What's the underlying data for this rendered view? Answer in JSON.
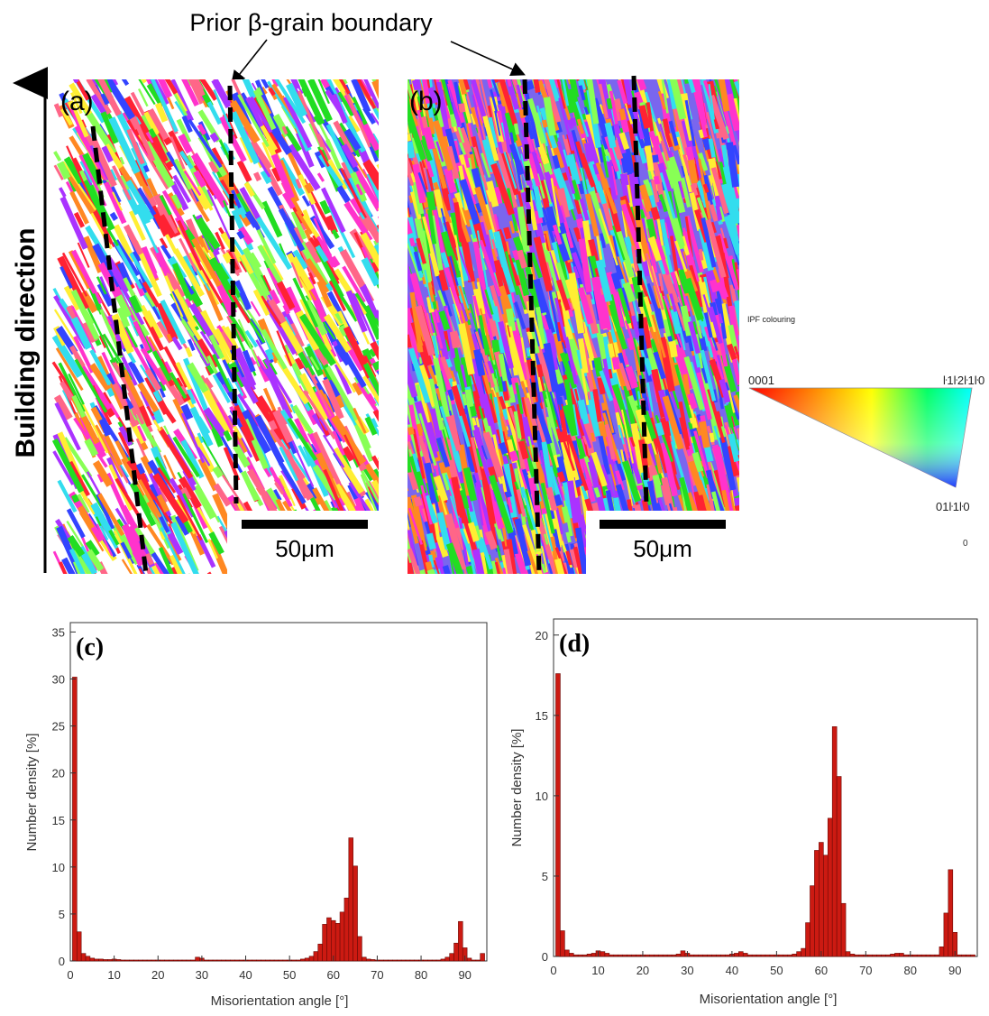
{
  "annotation": {
    "text": "Prior β-grain boundary"
  },
  "building_direction": {
    "text": "Building direction"
  },
  "maps": [
    {
      "label": "(a)",
      "scale_bar": "50μm"
    },
    {
      "label": "(b)",
      "scale_bar": "50μm"
    }
  ],
  "ipf_key": {
    "title": "IPF colouring",
    "corner_0001": "0001",
    "corner_1210": "ŀ1ŀ2ŀ1ŀ0",
    "corner_0110": "01ŀ1ŀ0",
    "stray": "0"
  },
  "colors": {
    "bar_fill": "#cc1a12",
    "bar_stroke": "#6a0a06",
    "boundary": "#000000",
    "map_palette": [
      "#ff2233",
      "#22dd22",
      "#ff33cc",
      "#3344ff",
      "#ffee33",
      "#33ddee",
      "#ff8822",
      "#aa33ff",
      "#88ff55",
      "#ff6688"
    ]
  },
  "chart_data": [
    {
      "panel": "(c)",
      "type": "bar",
      "xlabel": "Misorientation angle [°]",
      "ylabel": "Number density [%]",
      "xlim": [
        0,
        95
      ],
      "ylim": [
        0,
        36
      ],
      "xticks": [
        "0",
        "10",
        "20",
        "30",
        "40",
        "50",
        "60",
        "70",
        "80",
        "90"
      ],
      "yticks": [
        "0",
        "5",
        "10",
        "15",
        "20",
        "25",
        "30",
        "35"
      ],
      "bin_width": 1,
      "x": [
        1,
        2,
        3,
        4,
        5,
        6,
        7,
        8,
        9,
        10,
        11,
        12,
        13,
        14,
        15,
        16,
        17,
        18,
        19,
        20,
        21,
        22,
        23,
        24,
        25,
        26,
        27,
        28,
        29,
        30,
        31,
        32,
        33,
        34,
        35,
        36,
        37,
        38,
        39,
        40,
        41,
        42,
        43,
        44,
        45,
        46,
        47,
        48,
        49,
        50,
        51,
        52,
        53,
        54,
        55,
        56,
        57,
        58,
        59,
        60,
        61,
        62,
        63,
        64,
        65,
        66,
        67,
        68,
        69,
        70,
        71,
        72,
        73,
        74,
        75,
        76,
        77,
        78,
        79,
        80,
        81,
        82,
        83,
        84,
        85,
        86,
        87,
        88,
        89,
        90,
        91,
        92,
        93,
        94
      ],
      "values": [
        30.2,
        3.1,
        0.8,
        0.5,
        0.3,
        0.2,
        0.2,
        0.15,
        0.15,
        0.2,
        0.15,
        0.1,
        0.1,
        0.1,
        0.1,
        0.1,
        0.1,
        0.1,
        0.1,
        0.1,
        0.1,
        0.1,
        0.1,
        0.1,
        0.1,
        0.1,
        0.1,
        0.1,
        0.4,
        0.3,
        0.1,
        0.1,
        0.1,
        0.1,
        0.1,
        0.1,
        0.1,
        0.1,
        0.1,
        0.1,
        0.1,
        0.1,
        0.1,
        0.1,
        0.1,
        0.1,
        0.1,
        0.1,
        0.1,
        0.1,
        0.1,
        0.1,
        0.2,
        0.3,
        0.5,
        1.0,
        1.8,
        3.9,
        4.6,
        4.3,
        4.0,
        5.2,
        6.7,
        13.1,
        10.1,
        2.6,
        0.4,
        0.2,
        0.15,
        0.1,
        0.1,
        0.1,
        0.1,
        0.1,
        0.1,
        0.1,
        0.1,
        0.1,
        0.1,
        0.1,
        0.1,
        0.1,
        0.1,
        0.1,
        0.2,
        0.4,
        0.8,
        1.9,
        4.2,
        1.4,
        0.3,
        0.1,
        0.1,
        0.8
      ]
    },
    {
      "panel": "(d)",
      "type": "bar",
      "xlabel": "Misorientation angle [°]",
      "ylabel": "Number density [%]",
      "xlim": [
        0,
        95
      ],
      "ylim": [
        0,
        21
      ],
      "xticks": [
        "0",
        "10",
        "20",
        "30",
        "40",
        "50",
        "60",
        "70",
        "80",
        "90"
      ],
      "yticks": [
        "0",
        "5",
        "10",
        "15",
        "20"
      ],
      "bin_width": 1,
      "x": [
        1,
        2,
        3,
        4,
        5,
        6,
        7,
        8,
        9,
        10,
        11,
        12,
        13,
        14,
        15,
        16,
        17,
        18,
        19,
        20,
        21,
        22,
        23,
        24,
        25,
        26,
        27,
        28,
        29,
        30,
        31,
        32,
        33,
        34,
        35,
        36,
        37,
        38,
        39,
        40,
        41,
        42,
        43,
        44,
        45,
        46,
        47,
        48,
        49,
        50,
        51,
        52,
        53,
        54,
        55,
        56,
        57,
        58,
        59,
        60,
        61,
        62,
        63,
        64,
        65,
        66,
        67,
        68,
        69,
        70,
        71,
        72,
        73,
        74,
        75,
        76,
        77,
        78,
        79,
        80,
        81,
        82,
        83,
        84,
        85,
        86,
        87,
        88,
        89,
        90,
        91,
        92,
        93,
        94
      ],
      "values": [
        17.6,
        1.6,
        0.4,
        0.2,
        0.1,
        0.1,
        0.1,
        0.15,
        0.2,
        0.35,
        0.3,
        0.2,
        0.1,
        0.1,
        0.1,
        0.1,
        0.1,
        0.1,
        0.1,
        0.1,
        0.1,
        0.1,
        0.1,
        0.1,
        0.1,
        0.1,
        0.1,
        0.15,
        0.35,
        0.2,
        0.1,
        0.1,
        0.1,
        0.1,
        0.1,
        0.1,
        0.1,
        0.1,
        0.1,
        0.15,
        0.2,
        0.3,
        0.2,
        0.1,
        0.1,
        0.1,
        0.1,
        0.1,
        0.1,
        0.1,
        0.1,
        0.1,
        0.1,
        0.15,
        0.3,
        0.5,
        2.1,
        4.4,
        6.6,
        7.1,
        6.3,
        8.6,
        14.3,
        11.2,
        3.3,
        0.3,
        0.15,
        0.1,
        0.1,
        0.1,
        0.1,
        0.1,
        0.1,
        0.1,
        0.1,
        0.15,
        0.2,
        0.2,
        0.1,
        0.1,
        0.1,
        0.1,
        0.1,
        0.1,
        0.1,
        0.1,
        0.6,
        2.7,
        5.4,
        1.5,
        0.1,
        0.1,
        0.1,
        0.1
      ]
    }
  ]
}
